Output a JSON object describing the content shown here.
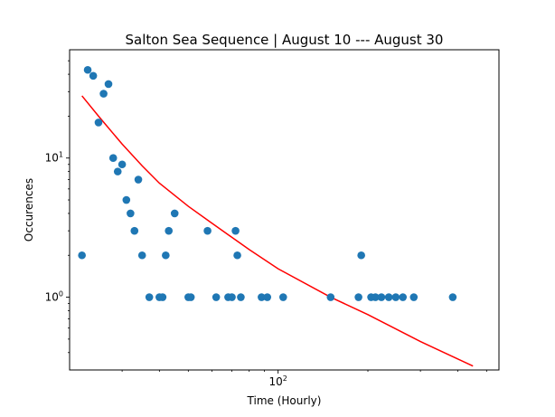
{
  "chart_data": {
    "type": "scatter",
    "title": "Salton Sea Sequence | August 10 --- August 30",
    "xlabel": "Time (Hourly)",
    "ylabel": "Occurences",
    "xscale": "log",
    "yscale": "log",
    "xlim": [
      20,
      550
    ],
    "ylim": [
      0.3,
      60
    ],
    "grid": false,
    "legend": "none",
    "x_major_ticks": [
      {
        "value": 100,
        "base": "10",
        "exp": "2"
      }
    ],
    "y_major_ticks": [
      {
        "value": 1,
        "base": "10",
        "exp": "0"
      },
      {
        "value": 10,
        "base": "10",
        "exp": "1"
      }
    ],
    "x_minor_ticks": [
      30,
      40,
      50,
      60,
      70,
      80,
      90,
      200,
      300,
      400,
      500
    ],
    "y_minor_ticks": [
      0.4,
      0.5,
      0.6,
      0.7,
      0.8,
      0.9,
      2,
      3,
      4,
      5,
      6,
      7,
      8,
      9,
      20,
      30,
      40,
      50
    ],
    "series": [
      {
        "type": "scatter",
        "color": "#1f77b4",
        "points": [
          [
            22.0,
            2
          ],
          [
            23.0,
            43
          ],
          [
            24.0,
            39
          ],
          [
            25.0,
            18
          ],
          [
            26.0,
            29
          ],
          [
            27.0,
            34
          ],
          [
            28.0,
            10
          ],
          [
            29.0,
            8
          ],
          [
            30.0,
            9
          ],
          [
            31.0,
            5
          ],
          [
            32.0,
            4
          ],
          [
            33.0,
            3
          ],
          [
            34.0,
            7
          ],
          [
            35.0,
            2
          ],
          [
            37.0,
            1
          ],
          [
            40.0,
            1
          ],
          [
            41.0,
            1
          ],
          [
            42.0,
            2
          ],
          [
            43.0,
            3
          ],
          [
            45.0,
            4
          ],
          [
            50.0,
            1
          ],
          [
            51.0,
            1
          ],
          [
            58.0,
            3
          ],
          [
            62.0,
            1
          ],
          [
            68.0,
            1
          ],
          [
            70.0,
            1
          ],
          [
            72.0,
            3
          ],
          [
            73.0,
            2
          ],
          [
            75.0,
            1
          ],
          [
            88.0,
            1
          ],
          [
            92.0,
            1
          ],
          [
            104.0,
            1
          ],
          [
            150.0,
            1
          ],
          [
            186.0,
            1
          ],
          [
            190.0,
            2
          ],
          [
            205.0,
            1
          ],
          [
            212.0,
            1
          ],
          [
            222.0,
            1
          ],
          [
            235.0,
            1
          ],
          [
            248.0,
            1
          ],
          [
            262.0,
            1
          ],
          [
            285.0,
            1
          ],
          [
            385.0,
            1
          ]
        ]
      },
      {
        "type": "line",
        "color": "#ff0000",
        "points": [
          [
            22.0,
            28
          ],
          [
            25.0,
            20
          ],
          [
            30.0,
            12.6
          ],
          [
            35.0,
            8.8
          ],
          [
            40.0,
            6.6
          ],
          [
            50.0,
            4.5
          ],
          [
            60.0,
            3.4
          ],
          [
            80.0,
            2.2
          ],
          [
            100.0,
            1.6
          ],
          [
            150.0,
            1.0
          ],
          [
            200.0,
            0.75
          ],
          [
            300.0,
            0.48
          ],
          [
            400.0,
            0.36
          ],
          [
            450.0,
            0.32
          ]
        ]
      }
    ]
  }
}
